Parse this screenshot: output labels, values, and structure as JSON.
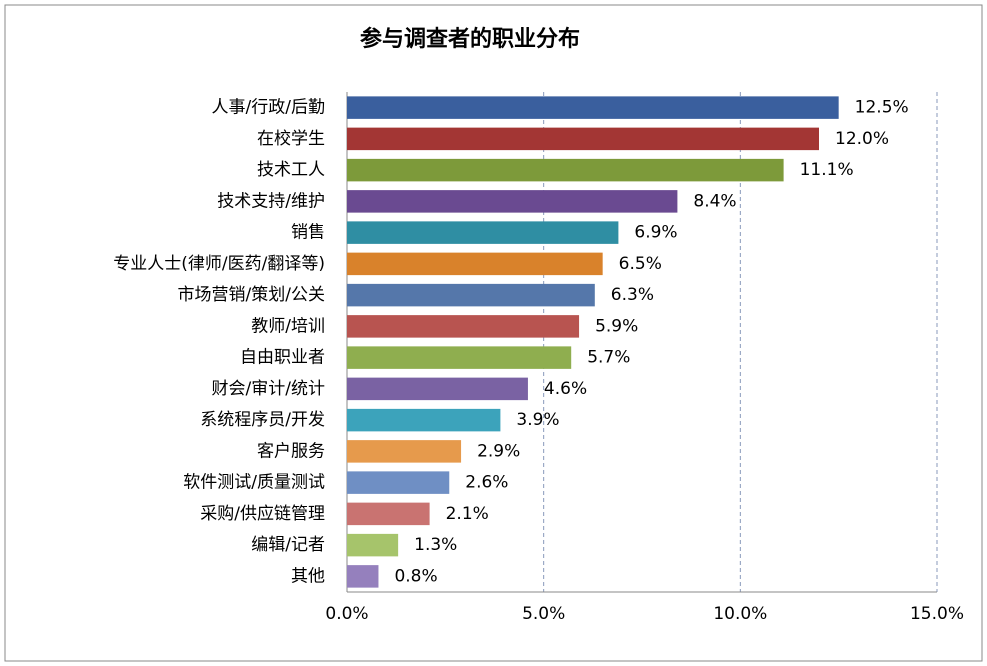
{
  "chart_data": {
    "type": "bar",
    "orientation": "horizontal",
    "title": "参与调查者的职业分布",
    "categories": [
      "人事/行政/后勤",
      "在校学生",
      "技术工人",
      "技术支持/维护",
      "销售",
      "专业人士(律师/医药/翻译等)",
      "市场营销/策划/公关",
      "教师/培训",
      "自由职业者",
      "财会/审计/统计",
      "系统程序员/开发",
      "客户服务",
      "软件测试/质量测试",
      "采购/供应链管理",
      "编辑/记者",
      "其他"
    ],
    "values": [
      12.5,
      12.0,
      11.1,
      8.4,
      6.9,
      6.5,
      6.3,
      5.9,
      5.7,
      4.6,
      3.9,
      2.9,
      2.6,
      2.1,
      1.3,
      0.8
    ],
    "value_labels": [
      "12.5%",
      "12.0%",
      "11.1%",
      "8.4%",
      "6.9%",
      "6.5%",
      "6.3%",
      "5.9%",
      "5.7%",
      "4.6%",
      "3.9%",
      "2.9%",
      "2.6%",
      "2.1%",
      "1.3%",
      "0.8%"
    ],
    "colors": [
      "#3a5f9e",
      "#a33634",
      "#7d9a3a",
      "#6a4a91",
      "#2f8ea3",
      "#d9822b",
      "#5577aa",
      "#b85450",
      "#8fae4f",
      "#7a62a3",
      "#3ca3bb",
      "#e69a4c",
      "#6f8fc4",
      "#c97371",
      "#a6c46b",
      "#9580bd"
    ],
    "xlim": [
      0,
      15
    ],
    "xticks": [
      {
        "value": 0,
        "label": "0.0%"
      },
      {
        "value": 5,
        "label": "5.0%"
      },
      {
        "value": 10,
        "label": "10.0%"
      },
      {
        "value": 15,
        "label": "15.0%"
      }
    ],
    "grid": true
  }
}
